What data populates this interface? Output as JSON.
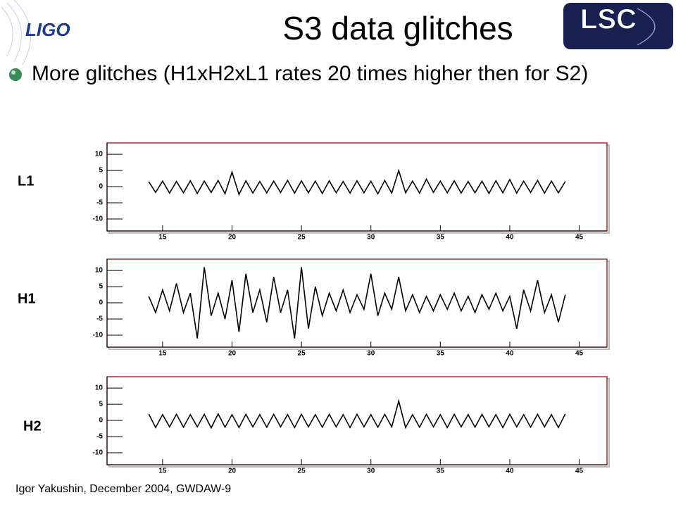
{
  "header": {
    "logo": "LIGO",
    "title": "S3 data glitches",
    "badge": "LSC"
  },
  "bullets": [
    "More glitches (H1xH2xL1 rates 20 times higher then for S2)"
  ],
  "chart_data": [
    {
      "type": "line",
      "label": "L1",
      "color": "#000000",
      "x": [
        14,
        14.5,
        15,
        15.5,
        16,
        16.5,
        17,
        17.5,
        18,
        18.5,
        19,
        19.5,
        20,
        20.5,
        21,
        21.5,
        22,
        22.5,
        23,
        23.5,
        24,
        24.5,
        25,
        25.5,
        26,
        26.5,
        27,
        27.5,
        28,
        28.5,
        29,
        29.5,
        30,
        30.5,
        31,
        31.5,
        32,
        32.5,
        33,
        33.5,
        34,
        34.5,
        35,
        35.5,
        36,
        36.5,
        37,
        37.5,
        38,
        38.5,
        39,
        39.5,
        40,
        40.5,
        41,
        41.5,
        42,
        42.5,
        43,
        43.5,
        44
      ],
      "values": [
        1.5,
        -1.8,
        1.7,
        -2,
        1.6,
        -1.9,
        1.8,
        -2.1,
        1.7,
        -1.8,
        1.9,
        -2.2,
        4.5,
        -2.4,
        1.8,
        -2,
        1.6,
        -1.9,
        1.7,
        -1.8,
        1.9,
        -2,
        1.8,
        -1.9,
        1.7,
        -2.1,
        1.8,
        -1.9,
        1.6,
        -2,
        1.8,
        -1.9,
        1.7,
        -2.2,
        1.9,
        -2,
        5,
        -1.9,
        1.7,
        -2,
        2.3,
        -1.8,
        1.7,
        -1.9,
        1.8,
        -2,
        1.6,
        -1.9,
        1.7,
        -2.1,
        1.8,
        -1.9,
        2.2,
        -2,
        1.7,
        -1.8,
        1.9,
        -2,
        1.7,
        -1.9,
        1.6
      ],
      "xlim": [
        11,
        47
      ],
      "ylim": [
        -13.7,
        13.5
      ],
      "xticks": [
        15,
        20,
        25,
        30,
        35,
        40,
        45
      ],
      "yticks": [
        -10,
        -5,
        0,
        5,
        10
      ]
    },
    {
      "type": "line",
      "label": "H1",
      "color": "#000000",
      "x": [
        14,
        14.5,
        15,
        15.5,
        16,
        16.5,
        17,
        17.5,
        18,
        18.5,
        19,
        19.5,
        20,
        20.5,
        21,
        21.5,
        22,
        22.5,
        23,
        23.5,
        24,
        24.5,
        25,
        25.5,
        26,
        26.5,
        27,
        27.5,
        28,
        28.5,
        29,
        29.5,
        30,
        30.5,
        31,
        31.5,
        32,
        32.5,
        33,
        33.5,
        34,
        34.5,
        35,
        35.5,
        36,
        36.5,
        37,
        37.5,
        38,
        38.5,
        39,
        39.5,
        40,
        40.5,
        41,
        41.5,
        42,
        42.5,
        43,
        43.5,
        44
      ],
      "values": [
        2,
        -3,
        4,
        -2.5,
        6,
        -3,
        3,
        -11,
        11,
        -4,
        3,
        -5,
        7,
        -9,
        9,
        -3,
        4,
        -6,
        8,
        -3,
        4,
        -11,
        11,
        -8,
        5,
        -4,
        3,
        -2.5,
        4,
        -3,
        2.5,
        -2,
        9,
        -4,
        3,
        -2,
        8,
        -2.5,
        2.5,
        -3,
        2,
        -2.5,
        2.5,
        -2,
        3,
        -2.5,
        2,
        -3,
        2.5,
        -2,
        3,
        -2.5,
        2,
        -8,
        4,
        -2.5,
        7,
        -3,
        2.5,
        -6,
        2.5
      ],
      "xlim": [
        11,
        47
      ],
      "ylim": [
        -13.7,
        13.5
      ],
      "xticks": [
        15,
        20,
        25,
        30,
        35,
        40,
        45
      ],
      "yticks": [
        -10,
        -5,
        0,
        5,
        10
      ]
    },
    {
      "type": "line",
      "label": "H2",
      "color": "#000000",
      "x": [
        14,
        14.5,
        15,
        15.5,
        16,
        16.5,
        17,
        17.5,
        18,
        18.5,
        19,
        19.5,
        20,
        20.5,
        21,
        21.5,
        22,
        22.5,
        23,
        23.5,
        24,
        24.5,
        25,
        25.5,
        26,
        26.5,
        27,
        27.5,
        28,
        28.5,
        29,
        29.5,
        30,
        30.5,
        31,
        31.5,
        32,
        32.5,
        33,
        33.5,
        34,
        34.5,
        35,
        35.5,
        36,
        36.5,
        37,
        37.5,
        38,
        38.5,
        39,
        39.5,
        40,
        40.5,
        41,
        41.5,
        42,
        42.5,
        43,
        43.5,
        44
      ],
      "values": [
        2,
        -2.2,
        1.8,
        -2,
        1.9,
        -2.1,
        1.8,
        -2,
        1.9,
        -2.3,
        2,
        -2.1,
        1.8,
        -2.2,
        1.9,
        -2,
        1.8,
        -2.1,
        1.9,
        -2,
        1.8,
        -2.2,
        1.9,
        -2,
        1.8,
        -2.1,
        1.9,
        -2,
        1.8,
        -2.2,
        1.9,
        -2,
        1.8,
        -2.1,
        1.9,
        -2,
        6,
        -2.2,
        1.8,
        -2.1,
        1.9,
        -2,
        1.8,
        -2.2,
        1.9,
        -2,
        1.8,
        -2.1,
        1.9,
        -2,
        1.8,
        -2.2,
        1.9,
        -2,
        1.8,
        -2.1,
        1.9,
        -2,
        1.8,
        -2.2,
        2
      ],
      "xlim": [
        11,
        47
      ],
      "ylim": [
        -13.7,
        13.5
      ],
      "xticks": [
        15,
        20,
        25,
        30,
        35,
        40,
        45
      ],
      "yticks": [
        -10,
        -5,
        0,
        5,
        10
      ]
    }
  ],
  "footer": "Igor Yakushin, December 2004, GWDAW-9"
}
